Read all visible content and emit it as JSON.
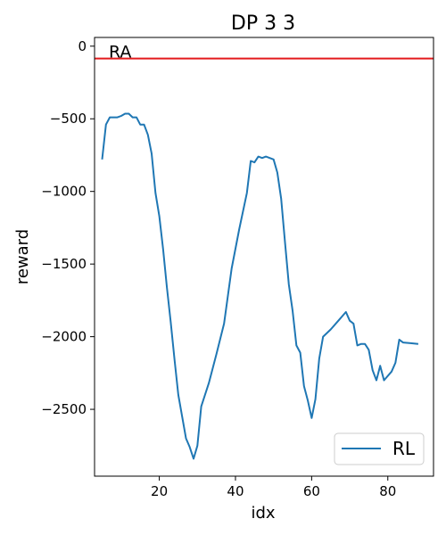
{
  "chart_data": {
    "type": "line",
    "title": "DP 3 3",
    "xlabel": "idx",
    "ylabel": "reward",
    "xlim": [
      3,
      92
    ],
    "ylim": [
      -2960,
      60
    ],
    "xticks": [
      20,
      40,
      60,
      80
    ],
    "yticks": [
      0,
      -500,
      -1000,
      -1500,
      -2000,
      -2500
    ],
    "grid": false,
    "legend_position": "bottom-right",
    "series": [
      {
        "name": "RL",
        "color": "#1f77b4",
        "x": [
          5,
          6,
          7,
          8,
          9,
          10,
          11,
          12,
          13,
          14,
          15,
          16,
          17,
          18,
          19,
          20,
          21,
          22,
          23,
          24,
          25,
          26,
          27,
          28,
          29,
          30,
          31,
          33,
          35,
          37,
          39,
          41,
          43,
          44,
          45,
          46,
          47,
          48,
          49,
          50,
          51,
          52,
          53,
          54,
          55,
          56,
          57,
          58,
          59,
          60,
          61,
          62,
          63,
          65,
          67,
          69,
          70,
          71,
          72,
          73,
          74,
          75,
          76,
          77,
          78,
          79,
          81,
          82,
          83,
          84,
          86,
          88
        ],
        "y": [
          -780,
          -540,
          -490,
          -490,
          -490,
          -480,
          -465,
          -465,
          -490,
          -490,
          -540,
          -540,
          -610,
          -740,
          -1010,
          -1170,
          -1400,
          -1660,
          -1900,
          -2160,
          -2400,
          -2550,
          -2700,
          -2760,
          -2840,
          -2750,
          -2480,
          -2320,
          -2120,
          -1910,
          -1530,
          -1260,
          -1010,
          -790,
          -800,
          -760,
          -770,
          -760,
          -770,
          -780,
          -870,
          -1050,
          -1350,
          -1640,
          -1820,
          -2060,
          -2110,
          -2340,
          -2440,
          -2560,
          -2430,
          -2150,
          -2000,
          -1950,
          -1890,
          -1830,
          -1890,
          -1910,
          -2060,
          -2050,
          -2050,
          -2090,
          -2230,
          -2300,
          -2200,
          -2300,
          -2240,
          -2180,
          -2020,
          -2040,
          -2045,
          -2050
        ]
      }
    ],
    "reference_lines": [
      {
        "label": "RA",
        "y": -85,
        "color": "#e31a1c"
      }
    ]
  }
}
